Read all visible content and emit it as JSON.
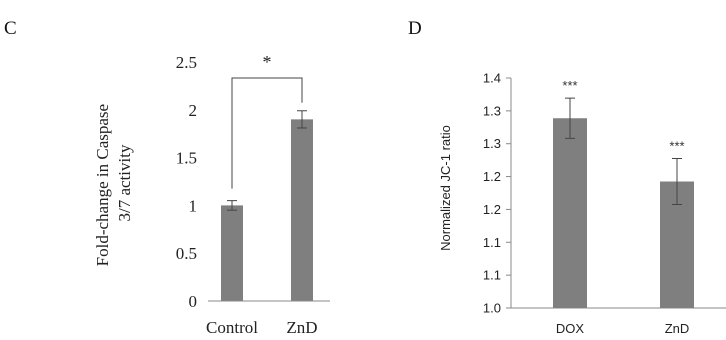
{
  "chart_data": [
    {
      "panel": "C",
      "type": "bar",
      "categories": [
        "Control",
        "ZnD"
      ],
      "values": [
        1.0,
        1.9
      ],
      "errors": [
        0.05,
        0.09
      ],
      "ylabel": "Fold-change in Caspase 3/7 activity",
      "ylabel_lines": [
        "Fold-change in Caspase",
        "3/7 activity"
      ],
      "ylim": [
        0,
        2.5
      ],
      "yticks": [
        "0",
        "0.5",
        "1",
        "1.5",
        "2",
        "2.5"
      ],
      "significance": "*",
      "bar_color": "#7f7f7f",
      "grid": false
    },
    {
      "panel": "D",
      "type": "bar",
      "categories": [
        "DOX",
        "ZnD"
      ],
      "values": [
        1.33,
        1.22
      ],
      "errors": [
        0.035,
        0.04
      ],
      "annotations": [
        "***",
        "***"
      ],
      "ylabel": "Normalized JC-1 ratio",
      "ylim": [
        1.0,
        1.4
      ],
      "yticks": [
        "1.0",
        "1.1",
        "1.1",
        "1.2",
        "1.2",
        "1.3",
        "1.3",
        "1.4"
      ],
      "bar_color": "#7f7f7f",
      "grid": false
    }
  ]
}
